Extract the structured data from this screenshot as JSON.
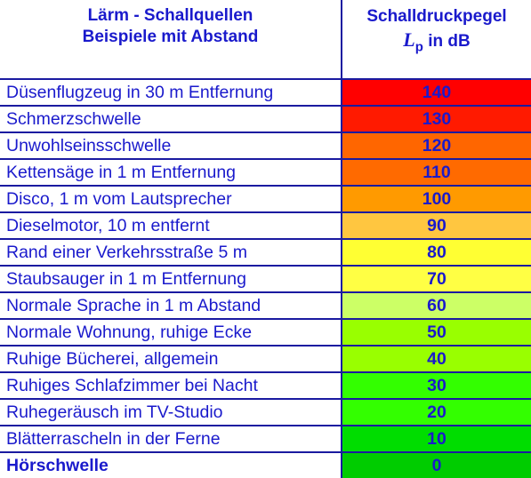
{
  "header": {
    "left_line1": "Lärm - Schallquellen",
    "left_line2": "Beispiele mit Abstand",
    "right_line1": "Schalldruckpegel",
    "right_symbol": "L",
    "right_symbol_sub": "p",
    "right_unit": "in dB"
  },
  "rows": [
    {
      "label": "Düsenflugzeug in 30 m Entfernung",
      "value": "140",
      "color": "#ff0000",
      "bold": false
    },
    {
      "label": "Schmerzschwelle",
      "value": "130",
      "color": "#ff1a00",
      "bold": false
    },
    {
      "label": "Unwohlseinsschwelle",
      "value": "120",
      "color": "#ff6600",
      "bold": false
    },
    {
      "label": "Kettensäge in 1 m Entfernung",
      "value": "110",
      "color": "#ff6a00",
      "bold": false
    },
    {
      "label": "Disco, 1 m vom Lautsprecher",
      "value": "100",
      "color": "#ff9a00",
      "bold": false
    },
    {
      "label": "Dieselmotor, 10 m entfernt",
      "value": "90",
      "color": "#ffc640",
      "bold": false
    },
    {
      "label": "Rand einer Verkehrsstraße 5 m",
      "value": "80",
      "color": "#ffff33",
      "bold": false
    },
    {
      "label": "Staubsauger in 1 m Entfernung",
      "value": "70",
      "color": "#ffff44",
      "bold": false
    },
    {
      "label": "Normale Sprache in 1 m Abstand",
      "value": "60",
      "color": "#ccff66",
      "bold": false
    },
    {
      "label": "Normale Wohnung, ruhige Ecke",
      "value": "50",
      "color": "#99ff00",
      "bold": false
    },
    {
      "label": "Ruhige Bücherei, allgemein",
      "value": "40",
      "color": "#99ff00",
      "bold": false
    },
    {
      "label": "Ruhiges Schlafzimmer bei Nacht",
      "value": "30",
      "color": "#33ff00",
      "bold": false
    },
    {
      "label": "Ruhegeräusch im TV-Studio",
      "value": "20",
      "color": "#33ff00",
      "bold": false
    },
    {
      "label": "Blätterrascheln in der Ferne",
      "value": "10",
      "color": "#00dd00",
      "bold": false
    },
    {
      "label": "Hörschwelle",
      "value": "0",
      "color": "#00cc00",
      "bold": true
    }
  ]
}
